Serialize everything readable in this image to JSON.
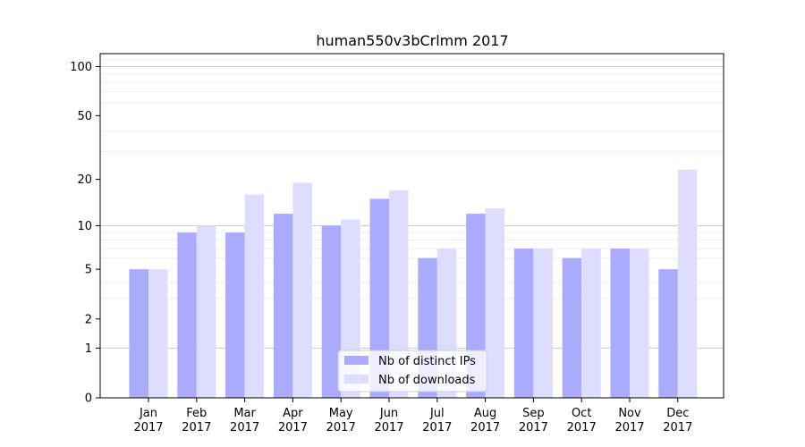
{
  "chart_data": {
    "type": "bar",
    "title": "human550v3bCrlmm 2017",
    "categories": [
      [
        "Jan",
        "2017"
      ],
      [
        "Feb",
        "2017"
      ],
      [
        "Mar",
        "2017"
      ],
      [
        "Apr",
        "2017"
      ],
      [
        "May",
        "2017"
      ],
      [
        "Jun",
        "2017"
      ],
      [
        "Jul",
        "2017"
      ],
      [
        "Aug",
        "2017"
      ],
      [
        "Sep",
        "2017"
      ],
      [
        "Oct",
        "2017"
      ],
      [
        "Nov",
        "2017"
      ],
      [
        "Dec",
        "2017"
      ]
    ],
    "series": [
      {
        "name": "Nb of distinct IPs",
        "color": "#aaaaff",
        "values": [
          5,
          9,
          9,
          12,
          10,
          15,
          6,
          12,
          7,
          6,
          7,
          5
        ]
      },
      {
        "name": "Nb of downloads",
        "color": "#ddddff",
        "values": [
          5,
          10,
          16,
          19,
          11,
          17,
          7,
          13,
          7,
          7,
          7,
          23
        ]
      }
    ],
    "yscale": "log(1+y)",
    "ylim": [
      0,
      120
    ],
    "yticks": [
      0,
      1,
      2,
      5,
      10,
      20,
      50,
      100
    ],
    "grid": true,
    "legend_position": "bottom-center"
  }
}
